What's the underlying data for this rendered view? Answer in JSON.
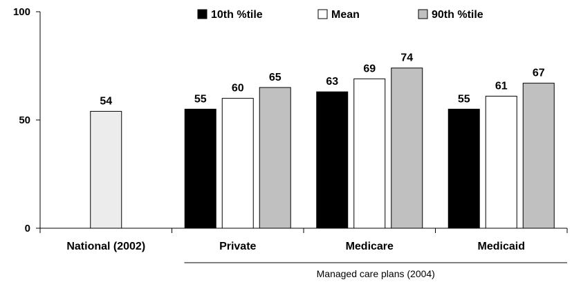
{
  "chart_data": {
    "type": "bar",
    "ylim": [
      0,
      100
    ],
    "yticks": [
      0,
      50,
      100
    ],
    "categories": [
      "National (2002)",
      "Private",
      "Medicare",
      "Medicaid"
    ],
    "series": [
      {
        "name": "",
        "color": "#ececec",
        "values": [
          54,
          null,
          null,
          null
        ]
      },
      {
        "name": "10th %tile",
        "color": "#000000",
        "values": [
          null,
          55,
          63,
          55
        ]
      },
      {
        "name": "Mean",
        "color": "#ffffff",
        "values": [
          null,
          60,
          69,
          61
        ]
      },
      {
        "name": "90th %tile",
        "color": "#c0c0c0",
        "values": [
          null,
          65,
          74,
          67
        ]
      }
    ],
    "group_label": "Managed care plans (2004)",
    "legend_position": "top-center",
    "grid": false
  }
}
